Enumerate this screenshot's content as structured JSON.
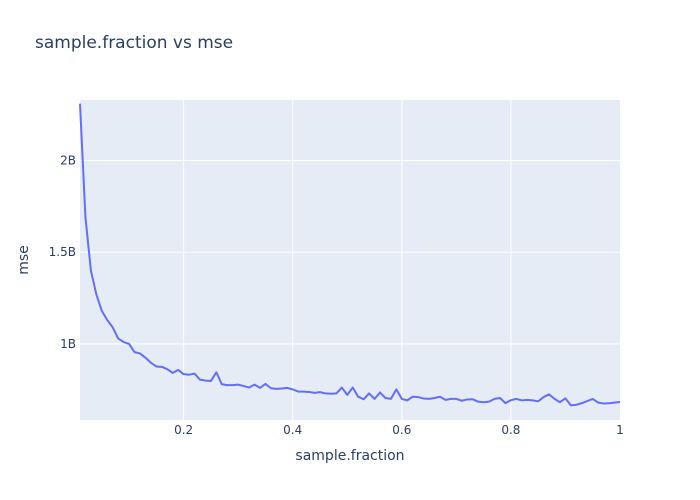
{
  "chart_data": {
    "type": "line",
    "title": "sample.fraction vs mse",
    "xlabel": "sample.fraction",
    "ylabel": "mse",
    "xlim": [
      0.01,
      1.0
    ],
    "ylim": [
      585000000,
      2330000000
    ],
    "x_ticks": [
      {
        "value": 0.2,
        "label": "0.2"
      },
      {
        "value": 0.4,
        "label": "0.4"
      },
      {
        "value": 0.6,
        "label": "0.6"
      },
      {
        "value": 0.8,
        "label": "0.8"
      },
      {
        "value": 1.0,
        "label": "1"
      }
    ],
    "y_ticks": [
      {
        "value": 1000000000,
        "label": "1B"
      },
      {
        "value": 1500000000,
        "label": "1.5B"
      },
      {
        "value": 2000000000,
        "label": "2B"
      }
    ],
    "grid": true,
    "line_color": "#636efa",
    "series": [
      {
        "x": [
          0.01,
          0.02,
          0.03,
          0.04,
          0.05,
          0.06,
          0.07,
          0.08,
          0.09,
          0.1,
          0.11,
          0.12,
          0.13,
          0.14,
          0.15,
          0.16,
          0.17,
          0.18,
          0.19,
          0.2,
          0.21,
          0.22,
          0.23,
          0.24,
          0.25,
          0.26,
          0.27,
          0.28,
          0.29,
          0.3,
          0.31,
          0.32,
          0.33,
          0.34,
          0.35,
          0.36,
          0.37,
          0.38,
          0.39,
          0.4,
          0.41,
          0.42,
          0.43,
          0.44,
          0.45,
          0.46,
          0.47,
          0.48,
          0.49,
          0.5,
          0.51,
          0.52,
          0.53,
          0.54,
          0.55,
          0.56,
          0.57,
          0.58,
          0.59,
          0.6,
          0.61,
          0.62,
          0.63,
          0.64,
          0.65,
          0.66,
          0.67,
          0.68,
          0.69,
          0.7,
          0.71,
          0.72,
          0.73,
          0.74,
          0.75,
          0.76,
          0.77,
          0.78,
          0.79,
          0.8,
          0.81,
          0.82,
          0.83,
          0.84,
          0.85,
          0.86,
          0.87,
          0.88,
          0.89,
          0.9,
          0.91,
          0.92,
          0.93,
          0.94,
          0.95,
          0.96,
          0.97,
          0.98,
          0.99,
          1.0
        ],
        "y": [
          2310000000,
          1690000000,
          1400000000,
          1270000000,
          1180000000,
          1130000000,
          1090000000,
          1030000000,
          1010000000,
          1000000000,
          955000000,
          948000000,
          925000000,
          897000000,
          877000000,
          875000000,
          862000000,
          842000000,
          858000000,
          835000000,
          832000000,
          838000000,
          805000000,
          800000000,
          798000000,
          845000000,
          780000000,
          775000000,
          775000000,
          778000000,
          770000000,
          762000000,
          778000000,
          760000000,
          782000000,
          758000000,
          755000000,
          757000000,
          760000000,
          752000000,
          740000000,
          740000000,
          738000000,
          733000000,
          737000000,
          730000000,
          728000000,
          730000000,
          762000000,
          722000000,
          762000000,
          712000000,
          698000000,
          730000000,
          700000000,
          735000000,
          705000000,
          700000000,
          752000000,
          700000000,
          692000000,
          712000000,
          710000000,
          702000000,
          700000000,
          705000000,
          712000000,
          695000000,
          700000000,
          700000000,
          690000000,
          697000000,
          698000000,
          685000000,
          682000000,
          685000000,
          700000000,
          705000000,
          677000000,
          693000000,
          700000000,
          692000000,
          695000000,
          692000000,
          687000000,
          710000000,
          725000000,
          700000000,
          682000000,
          703000000,
          665000000,
          668000000,
          677000000,
          688000000,
          700000000,
          680000000,
          675000000,
          676000000,
          680000000,
          683000000
        ]
      }
    ]
  }
}
